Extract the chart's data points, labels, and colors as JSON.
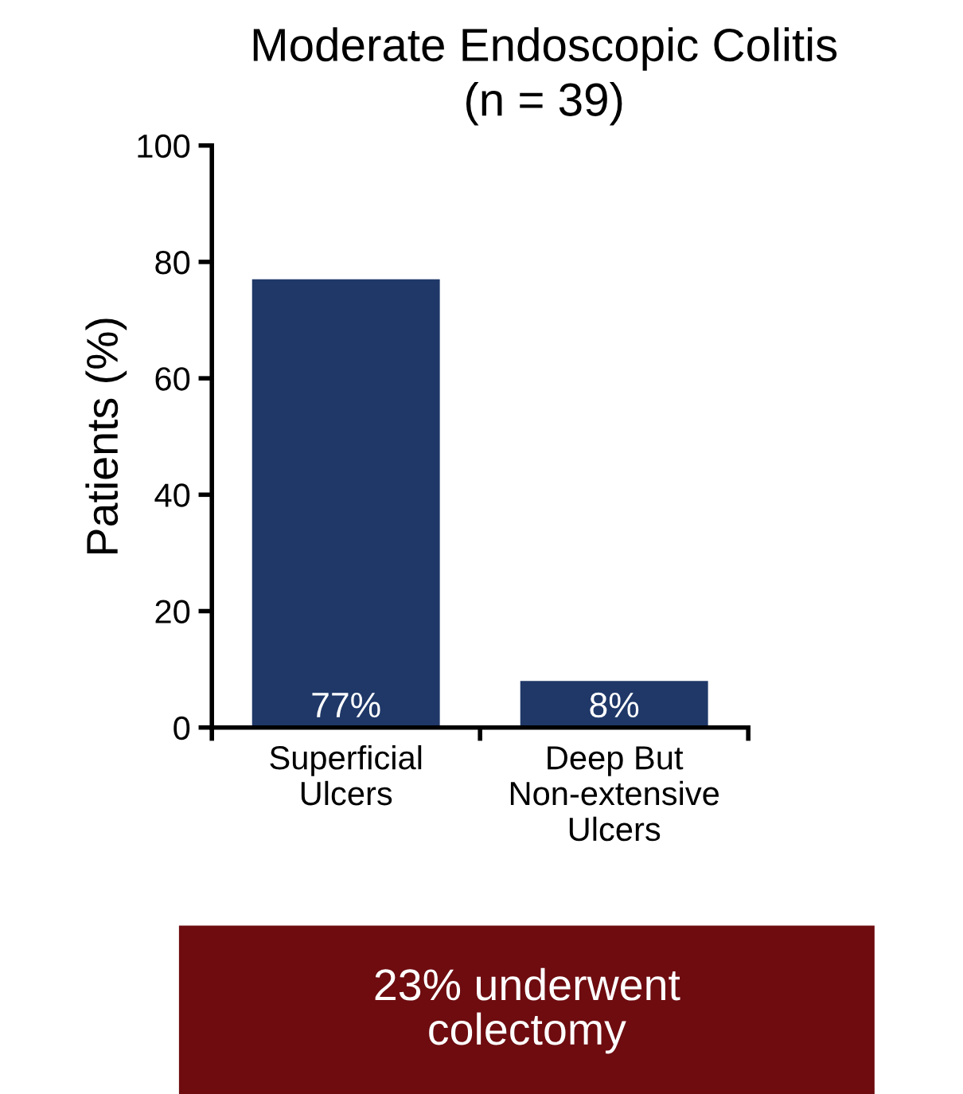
{
  "chart_data": {
    "type": "bar",
    "title": "Moderate Endoscopic Colitis",
    "subtitle": "(n = 39)",
    "ylabel": "Patients (%)",
    "categories": [
      "Superficial\nUlcers",
      "Deep But\nNon-extensive\nUlcers"
    ],
    "values": [
      77,
      8
    ],
    "color": "#1f3868",
    "value_labels": [
      "77%",
      "8%"
    ],
    "ylim": [
      0,
      100
    ],
    "yticks": [
      0,
      20,
      40,
      60,
      80,
      100
    ],
    "grid": false,
    "annotations": [
      "23% underwent\ncolectomy"
    ]
  }
}
